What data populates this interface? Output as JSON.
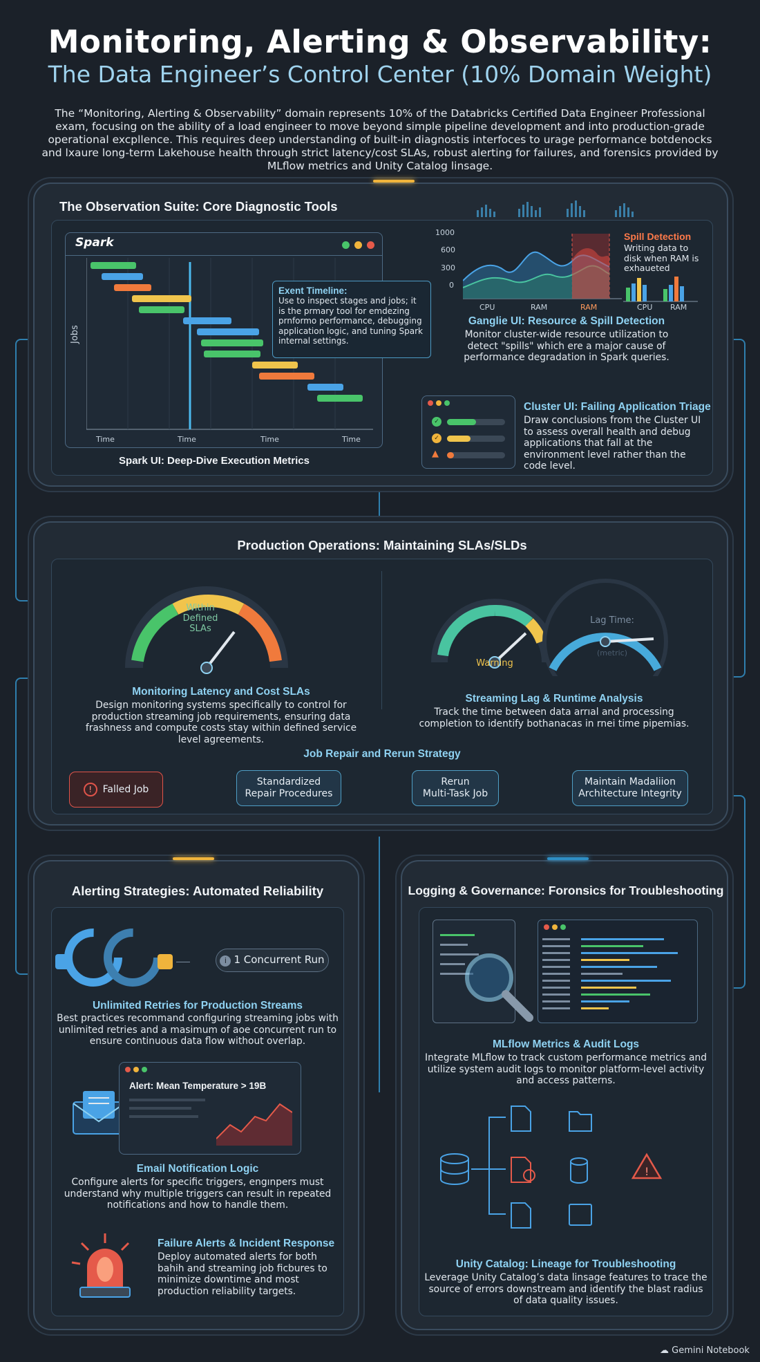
{
  "title": "Monitoring, Alerting & Observability:",
  "subtitle": "The Data Engineer’s Control Center (10% Domain Weight)",
  "intro": "The “Monitoring, Alerting & Observability” domain represents 10% of the Databricks Certified Data Engineer Professional exam, focusing on the ability of a load engineer to move beyond simple pipeline development and into production-grade operational excpllence. This requires deep understanding of built-in diagnostis interfoces to urage performance botdenocks and lxaure long-term Lakehouse health through strict latency/cost SLAs, robust alerting for failures, and forensics provided by MLflow metrics and Unity Catalog linsage.",
  "section1": {
    "title": "The Observation Suite: Core Diagnostic Tools",
    "spark": {
      "logo": "Spark",
      "ylabel": "Jobs",
      "xticks": [
        "Time",
        "Time",
        "Time",
        "Time"
      ],
      "callout_title": "Exent Timeline:",
      "callout_text": "Use to inspect stages and jobs; it is the prmary tool for emdezing prnformo performance, debugging application logic, and tuning Spark internal settings.",
      "caption": "Spark UI: Deep-Dive Execution Metrics"
    },
    "ganglia": {
      "y_ticks": [
        "1000",
        "600",
        "300",
        "0"
      ],
      "x_ticks": [
        "CPU",
        "RAM",
        "RAM"
      ],
      "bar_ticks": [
        "CPU",
        "RAM"
      ],
      "spill_title": "Spill Detection",
      "spill_text": "Writing data to disk when RAM is exhaueted",
      "heading": "Ganglie UI: Resource & Spill Detection",
      "text": "Monitor cluster-wide resource utilization to detect \"spills\" which ere a major cause of performance degradation in Spark queries."
    },
    "cluster": {
      "heading": "Cluster UI: Failing Application Triage",
      "text": "Draw conclusions from the Cluster UI to assess overall health and debug applications that fall at the environment level rather than the code level."
    }
  },
  "section2": {
    "title": "Production Operations: Maintaining SLAs/SLDs",
    "gauge1_label": "Within Defined SLAs",
    "gauge2_label": "Warning",
    "gauge3_label": "Lag Time:",
    "gauge3_sub": "(metric)",
    "latency_heading": "Monitoring Latency and Cost SLAs",
    "latency_text": "Design monitoring systems specifically to control for production streaming job requirements, ensuring data frashness and compute costs stay within defined service level agreements.",
    "lag_heading": "Streaming Lag & Runtime Analysis",
    "lag_text": "Track the time between data arrıal and processing completion to identify bothanacas in rnei time pipemias.",
    "repair_heading": "Job Repair and Rerun Strategy",
    "steps": [
      "Falled Job",
      "Standardized\nRepair Procedures",
      "Rerun\nMulti-Task Job",
      "Maintain Madaliion\nArchitecture Integrity"
    ]
  },
  "section3": {
    "title": "Alerting Strategies: Automated Reliability",
    "concurrent": "1 Concurrent Run",
    "retries_heading": "Unlimited Retries for Production Streams",
    "retries_text": "Best practices recommand configuring streaming jobs with unlimited retries and a masimum of aoe concurrent run to ensure continuous data flow without overlap.",
    "alert_text": "Alert: Mean Temperature > 19B",
    "email_heading": "Email Notification Logic",
    "email_text": "Configure alerts for specific triggers, engınpers must understand why multiple triggers can result in repeated notifications and how to handle them.",
    "failure_heading": "Failure Alerts & Incident Response",
    "failure_text": "Deploy automated alerts for both bahih and streaming job ficbures to minimize downtime and most production reliability targets."
  },
  "section4": {
    "title": "Logging & Governance: Foronsics for Troubleshooting",
    "mlflow_heading": "MLflow Metrics & Audit Logs",
    "mlflow_text": "Integrate MLflow to track custom performance metrics and utilize system audit logs to monitor platform-level activity and access patterns.",
    "uc_heading": "Unity Catalog: Lineage for Troubleshooting",
    "uc_text": "Leverage Unity Catalog’s data linsage features to trace the source of errors downstream and identify the blast radius of data quality issues."
  },
  "footer": "Gemini Notebook",
  "colors": {
    "accent": "#8fd2f2",
    "alert": "#ff9a5c",
    "glow": "#3aa9e6",
    "warn": "#f0b43c",
    "ok": "#49c46a"
  }
}
